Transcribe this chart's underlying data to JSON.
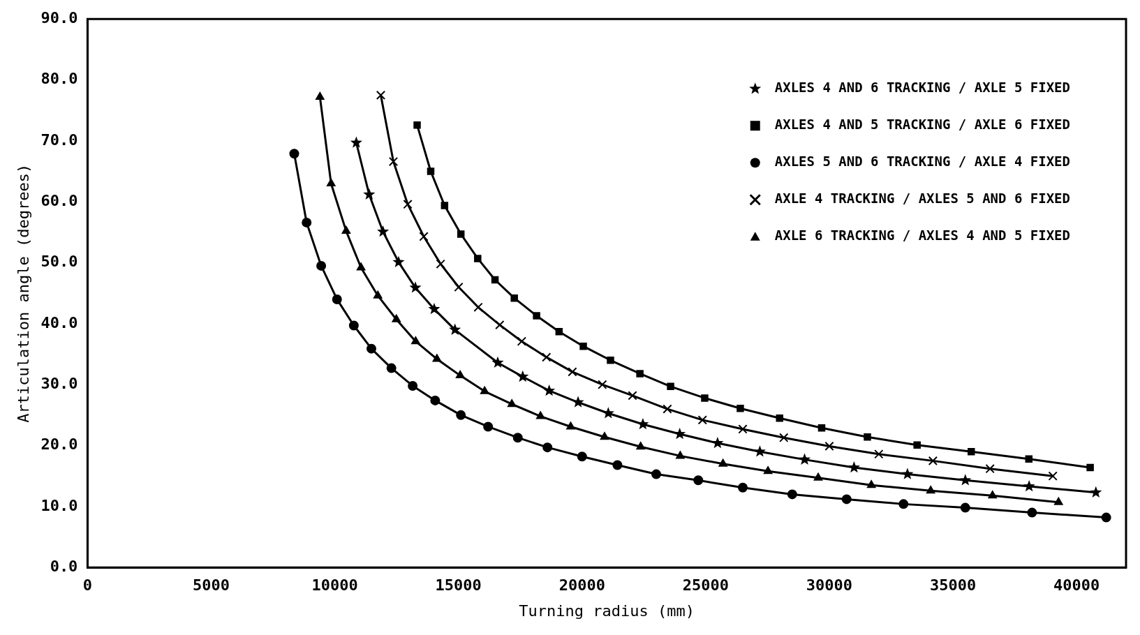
{
  "chart_data": {
    "type": "line",
    "xlabel": "Turning radius (mm)",
    "ylabel": "Articulation angle (degrees)",
    "xlim": [
      0,
      42000
    ],
    "xticks": [
      0,
      5000,
      10000,
      15000,
      20000,
      25000,
      30000,
      35000,
      40000
    ],
    "ylim": [
      0,
      90
    ],
    "yticks": [
      {
        "value": 0,
        "label": "0.0"
      },
      {
        "value": 10,
        "label": "10.0"
      },
      {
        "value": 20,
        "label": "20.0"
      },
      {
        "value": 30,
        "label": "30.0"
      },
      {
        "value": 40,
        "label": "40.0"
      },
      {
        "value": 50,
        "label": "50.0"
      },
      {
        "value": 60,
        "label": "60.0"
      },
      {
        "value": 70,
        "label": "70.0"
      },
      {
        "value": 80,
        "label": "80.0"
      },
      {
        "value": 90,
        "label": "90.0"
      }
    ],
    "legend": "top right",
    "line_style": "solid",
    "series": [
      {
        "name": "AXLES 4 AND 6 TRACKING / AXLE 5 FIXED",
        "color": "#000000",
        "marker": "star",
        "x": [
          10870,
          11390,
          11950,
          12580,
          13260,
          14020,
          14860,
          16590,
          17600,
          18670,
          19840,
          21060,
          22460,
          23950,
          25480,
          27190,
          29000,
          31000,
          33160,
          35500,
          38080,
          40780
        ],
        "values": [
          69.7,
          61.2,
          55.1,
          50.1,
          45.9,
          42.4,
          39.0,
          33.6,
          31.3,
          29.0,
          27.1,
          25.3,
          23.5,
          21.9,
          20.4,
          19.0,
          17.7,
          16.4,
          15.3,
          14.3,
          13.3,
          12.3
        ]
      },
      {
        "name": "AXLES 4 AND 5 TRACKING / AXLE 6 FIXED",
        "color": "#000000",
        "marker": "square",
        "x": [
          13330,
          13880,
          14440,
          15100,
          15780,
          16480,
          17260,
          18160,
          19070,
          20050,
          21150,
          22340,
          23580,
          24960,
          26400,
          27990,
          29690,
          31540,
          33550,
          35740,
          38070,
          40550
        ],
        "values": [
          72.6,
          65.0,
          59.4,
          54.7,
          50.7,
          47.2,
          44.2,
          41.3,
          38.7,
          36.3,
          34.0,
          31.8,
          29.7,
          27.8,
          26.1,
          24.5,
          22.9,
          21.4,
          20.1,
          19.0,
          17.8,
          16.4
        ]
      },
      {
        "name": "AXLES 5 AND 6 TRACKING / AXLE 4 FIXED",
        "color": "#000000",
        "marker": "circle",
        "x": [
          8360,
          8860,
          9450,
          10090,
          10770,
          11480,
          12290,
          13150,
          14060,
          15100,
          16200,
          17400,
          18600,
          20000,
          21430,
          23000,
          24700,
          26500,
          28500,
          30700,
          33000,
          35500,
          38200,
          41200
        ],
        "values": [
          67.9,
          56.6,
          49.5,
          44.0,
          39.7,
          35.9,
          32.7,
          29.8,
          27.4,
          25.0,
          23.1,
          21.3,
          19.7,
          18.2,
          16.8,
          15.3,
          14.3,
          13.1,
          12.0,
          11.2,
          10.4,
          9.8,
          9.0,
          8.2
        ]
      },
      {
        "name": "AXLE 4 TRACKING / AXLES 5 AND 6 FIXED",
        "color": "#000000",
        "marker": "cross",
        "x": [
          11860,
          12370,
          12950,
          13600,
          14280,
          15010,
          15800,
          16670,
          17560,
          18560,
          19610,
          20820,
          22040,
          23450,
          24870,
          26500,
          28160,
          30000,
          32000,
          34190,
          36500,
          39040
        ],
        "values": [
          77.5,
          66.6,
          59.6,
          54.3,
          49.8,
          46.0,
          42.7,
          39.8,
          37.1,
          34.5,
          32.1,
          30.0,
          28.2,
          26.0,
          24.2,
          22.7,
          21.3,
          19.9,
          18.6,
          17.5,
          16.2,
          15.0
        ]
      },
      {
        "name": "AXLE 6 TRACKING / AXLES 4 AND 5 FIXED",
        "color": "#000000",
        "marker": "triangle",
        "x": [
          9400,
          9850,
          10460,
          11060,
          11740,
          12490,
          13270,
          14130,
          15070,
          16060,
          17160,
          18320,
          19540,
          20910,
          22370,
          23970,
          25700,
          27520,
          29550,
          31700,
          34100,
          36600,
          39270
        ],
        "values": [
          77.2,
          63.0,
          55.2,
          49.2,
          44.6,
          40.7,
          37.1,
          34.2,
          31.5,
          28.9,
          26.8,
          24.8,
          23.1,
          21.4,
          19.8,
          18.3,
          17.0,
          15.8,
          14.7,
          13.5,
          12.6,
          11.8,
          10.7
        ]
      }
    ]
  }
}
